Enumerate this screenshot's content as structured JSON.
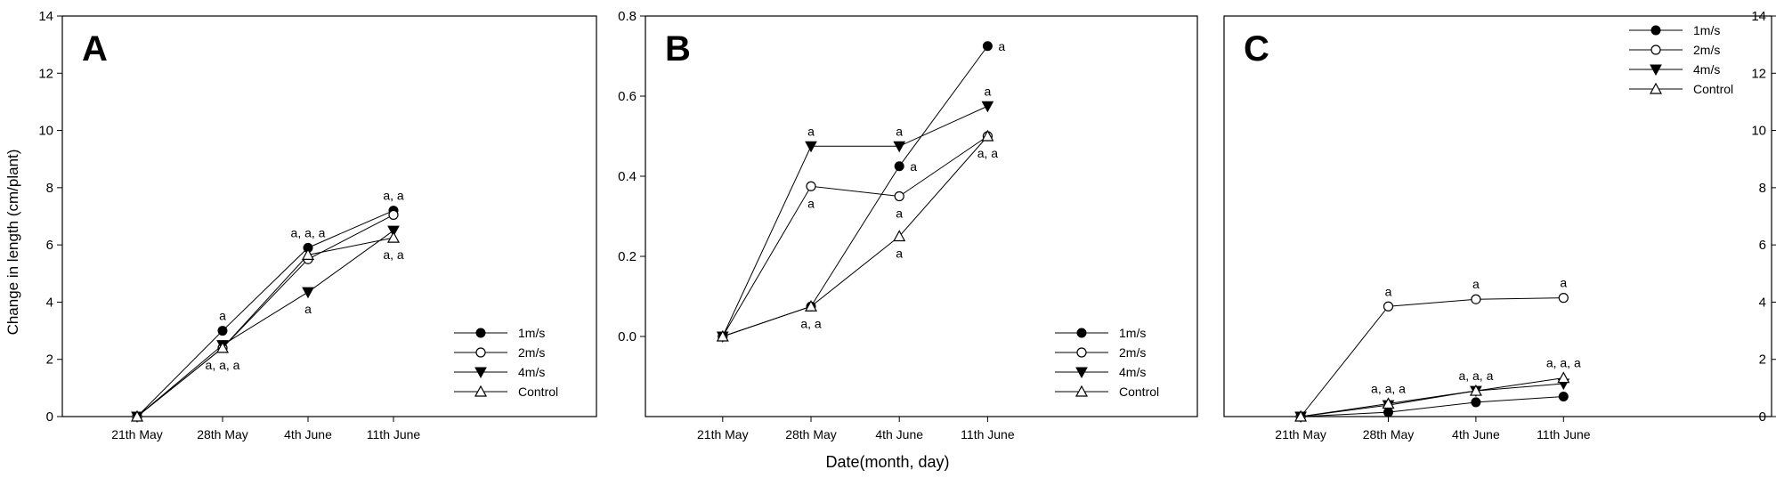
{
  "figure": {
    "ylabel": "Change in length (cm/plant)",
    "xlabel": "Date(month, day)"
  },
  "chart_data": [
    {
      "type": "line",
      "panel_label": "A",
      "categories": [
        "21th May",
        "28th May",
        "4th June",
        "11th June"
      ],
      "ylim": [
        0,
        14
      ],
      "yticks": [
        "0",
        "2",
        "4",
        "6",
        "8",
        "10",
        "12",
        "14"
      ],
      "legend_position": "bottom-right",
      "series": [
        {
          "name": "1m/s",
          "marker": "filled-circle",
          "values": [
            0,
            3.0,
            5.9,
            7.2
          ]
        },
        {
          "name": "2m/s",
          "marker": "open-circle",
          "values": [
            0,
            2.4,
            5.5,
            7.05
          ]
        },
        {
          "name": "4m/s",
          "marker": "filled-triangle-down",
          "values": [
            0,
            2.5,
            4.35,
            6.5
          ]
        },
        {
          "name": "Control",
          "marker": "open-triangle-up",
          "values": [
            0,
            2.4,
            5.65,
            6.25
          ]
        }
      ],
      "annotations": [
        {
          "text": "a",
          "x": "28th May",
          "y": 3.0,
          "pos": "above"
        },
        {
          "text": "a, a, a",
          "x": "28th May",
          "y": 2.4,
          "pos": "below"
        },
        {
          "text": "a, a, a",
          "x": "4th June",
          "y": 5.9,
          "pos": "above"
        },
        {
          "text": "a",
          "x": "4th June",
          "y": 4.35,
          "pos": "below"
        },
        {
          "text": "a, a",
          "x": "11th June",
          "y": 7.2,
          "pos": "above"
        },
        {
          "text": "a, a",
          "x": "11th June",
          "y": 6.25,
          "pos": "below"
        }
      ]
    },
    {
      "type": "line",
      "panel_label": "B",
      "categories": [
        "21th May",
        "28th May",
        "4th June",
        "11th June"
      ],
      "ylim": [
        -0.2,
        0.8
      ],
      "yticks": [
        "0.0",
        "0.2",
        "0.4",
        "0.6",
        "0.8"
      ],
      "legend_position": "bottom-right",
      "series": [
        {
          "name": "1m/s",
          "marker": "filled-circle",
          "values": [
            0,
            0.075,
            0.425,
            0.725
          ]
        },
        {
          "name": "2m/s",
          "marker": "open-circle",
          "values": [
            0,
            0.375,
            0.35,
            0.5
          ]
        },
        {
          "name": "4m/s",
          "marker": "filled-triangle-down",
          "values": [
            0,
            0.475,
            0.475,
            0.575
          ]
        },
        {
          "name": "Control",
          "marker": "open-triangle-up",
          "values": [
            0,
            0.075,
            0.25,
            0.5
          ]
        }
      ],
      "annotations": [
        {
          "text": "a",
          "x": "28th May",
          "y": 0.475,
          "pos": "above"
        },
        {
          "text": "a",
          "x": "28th May",
          "y": 0.375,
          "pos": "below"
        },
        {
          "text": "a, a",
          "x": "28th May",
          "y": 0.075,
          "pos": "below"
        },
        {
          "text": "a",
          "x": "4th June",
          "y": 0.475,
          "pos": "above"
        },
        {
          "text": "a",
          "x": "4th June",
          "y": 0.425,
          "pos": "right"
        },
        {
          "text": "a",
          "x": "4th June",
          "y": 0.35,
          "pos": "below"
        },
        {
          "text": "a",
          "x": "4th June",
          "y": 0.25,
          "pos": "below"
        },
        {
          "text": "a",
          "x": "11th June",
          "y": 0.725,
          "pos": "right"
        },
        {
          "text": "a",
          "x": "11th June",
          "y": 0.575,
          "pos": "above"
        },
        {
          "text": "a, a",
          "x": "11th June",
          "y": 0.5,
          "pos": "below"
        }
      ]
    },
    {
      "type": "line",
      "panel_label": "C",
      "categories": [
        "21th May",
        "28th May",
        "4th June",
        "11th June"
      ],
      "ylim": [
        0,
        14
      ],
      "yticks": [
        "0",
        "2",
        "4",
        "6",
        "8",
        "10",
        "12",
        "14"
      ],
      "y_axis_side": "right",
      "legend_position": "top-right",
      "series": [
        {
          "name": "1m/s",
          "marker": "filled-circle",
          "values": [
            0,
            0.15,
            0.5,
            0.7
          ]
        },
        {
          "name": "2m/s",
          "marker": "open-circle",
          "values": [
            0,
            3.85,
            4.1,
            4.15
          ]
        },
        {
          "name": "4m/s",
          "marker": "filled-triangle-down",
          "values": [
            0,
            0.4,
            0.9,
            1.15
          ]
        },
        {
          "name": "Control",
          "marker": "open-triangle-up",
          "values": [
            0,
            0.45,
            0.9,
            1.35
          ]
        }
      ],
      "annotations": [
        {
          "text": "a",
          "x": "28th May",
          "y": 3.85,
          "pos": "above"
        },
        {
          "text": "a",
          "x": "4th June",
          "y": 4.1,
          "pos": "above"
        },
        {
          "text": "a",
          "x": "11th June",
          "y": 4.15,
          "pos": "above"
        },
        {
          "text": "a, a, a",
          "x": "28th May",
          "y": 0.45,
          "pos": "above"
        },
        {
          "text": "a, a, a",
          "x": "4th June",
          "y": 0.9,
          "pos": "above"
        },
        {
          "text": "a, a, a",
          "x": "11th June",
          "y": 1.35,
          "pos": "above"
        }
      ]
    }
  ]
}
